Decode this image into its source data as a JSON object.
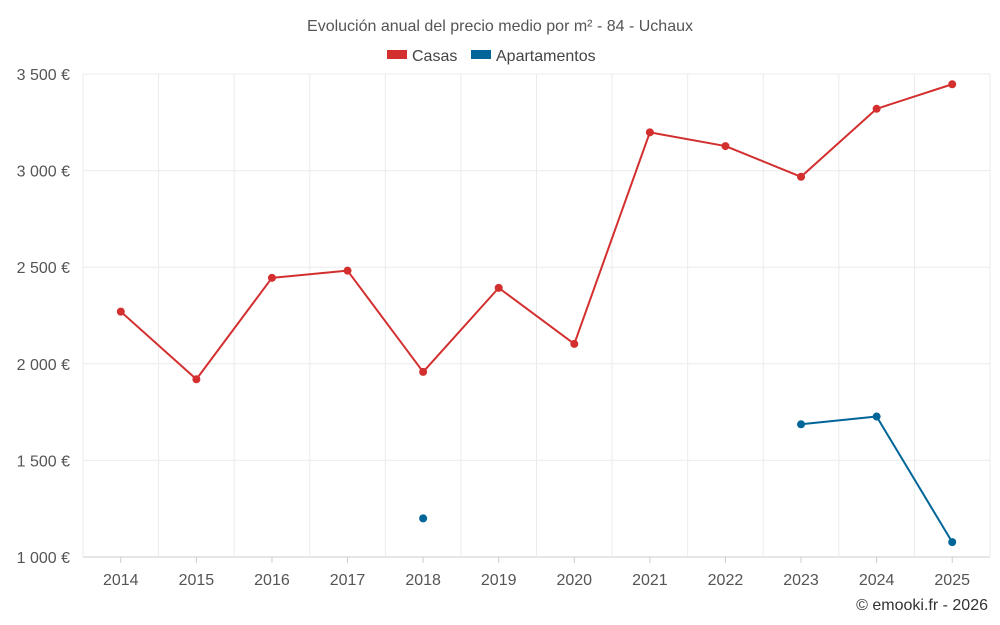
{
  "chart_data": {
    "type": "line",
    "title": "Evolución anual del precio medio por m² - 84 - Uchaux",
    "categories": [
      "2014",
      "2015",
      "2016",
      "2017",
      "2018",
      "2019",
      "2020",
      "2021",
      "2022",
      "2023",
      "2024",
      "2025"
    ],
    "y_ticks": [
      "1 000 €",
      "1 500 €",
      "2 000 €",
      "2 500 €",
      "3 000 €",
      "3 500 €"
    ],
    "ylim": [
      1000,
      3500
    ],
    "series": [
      {
        "name": "Casas",
        "color": "#d32f2f",
        "values": [
          2270,
          1920,
          2445,
          2482,
          1958,
          2393,
          2103,
          3198,
          3127,
          2968,
          3320,
          3447
        ]
      },
      {
        "name": "Apartamentos",
        "color": "#006699",
        "values": [
          null,
          null,
          null,
          null,
          1200,
          null,
          null,
          null,
          null,
          1687,
          1727,
          1077
        ]
      }
    ],
    "legend_position": "top-center",
    "grid": true
  },
  "credit": "© emooki.fr - 2026"
}
